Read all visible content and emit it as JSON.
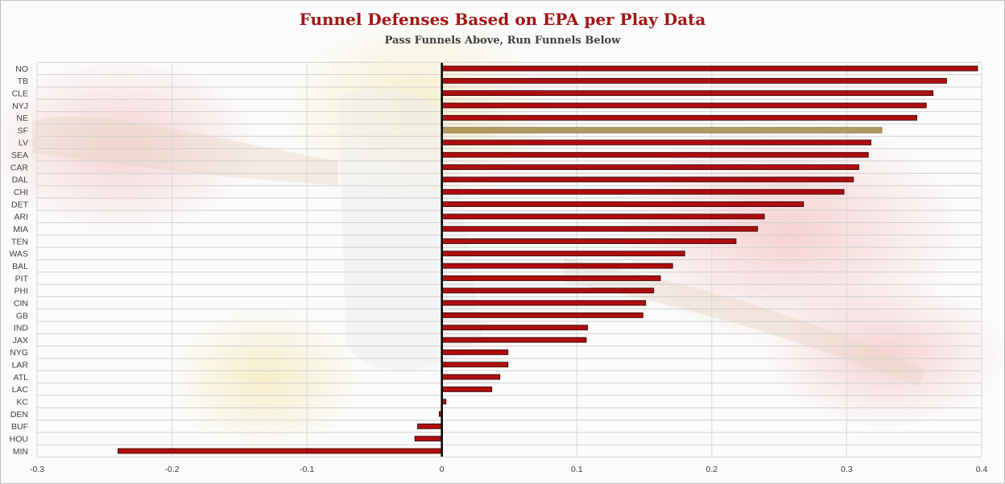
{
  "title": "Funnel Defenses Based on EPA per Play Data",
  "subtitle": "Pass Funnels Above, Run Funnels Below",
  "colors": {
    "bar": "#b00d0d",
    "highlight": "#b39b5f",
    "bar_edge": "#2a0000",
    "title": "#a31515"
  },
  "chart_data": {
    "type": "bar",
    "orientation": "horizontal",
    "title": "Funnel Defenses Based on EPA per Play Data",
    "subtitle": "Pass Funnels Above, Run Funnels Below",
    "xlabel": "",
    "ylabel": "",
    "xlim": [
      -0.3,
      0.4
    ],
    "x_ticks": [
      "-0.3",
      "-0.2",
      "-0.1",
      "0",
      "0.1",
      "0.2",
      "0.3",
      "0.4"
    ],
    "grid": true,
    "highlight": "SF",
    "categories": [
      "NO",
      "TB",
      "CLE",
      "NYJ",
      "NE",
      "SF",
      "LV",
      "SEA",
      "CAR",
      "DAL",
      "CHI",
      "DET",
      "ARI",
      "MIA",
      "TEN",
      "WAS",
      "BAL",
      "PIT",
      "PHI",
      "CIN",
      "GB",
      "IND",
      "JAX",
      "NYG",
      "LAR",
      "ATL",
      "LAC",
      "KC",
      "DEN",
      "BUF",
      "HOU",
      "MIN"
    ],
    "values": [
      0.397,
      0.374,
      0.364,
      0.359,
      0.352,
      0.326,
      0.318,
      0.316,
      0.309,
      0.305,
      0.298,
      0.268,
      0.239,
      0.234,
      0.218,
      0.18,
      0.171,
      0.162,
      0.157,
      0.151,
      0.149,
      0.108,
      0.107,
      0.049,
      0.049,
      0.043,
      0.037,
      0.003,
      -0.002,
      -0.018,
      -0.02,
      -0.24
    ]
  }
}
